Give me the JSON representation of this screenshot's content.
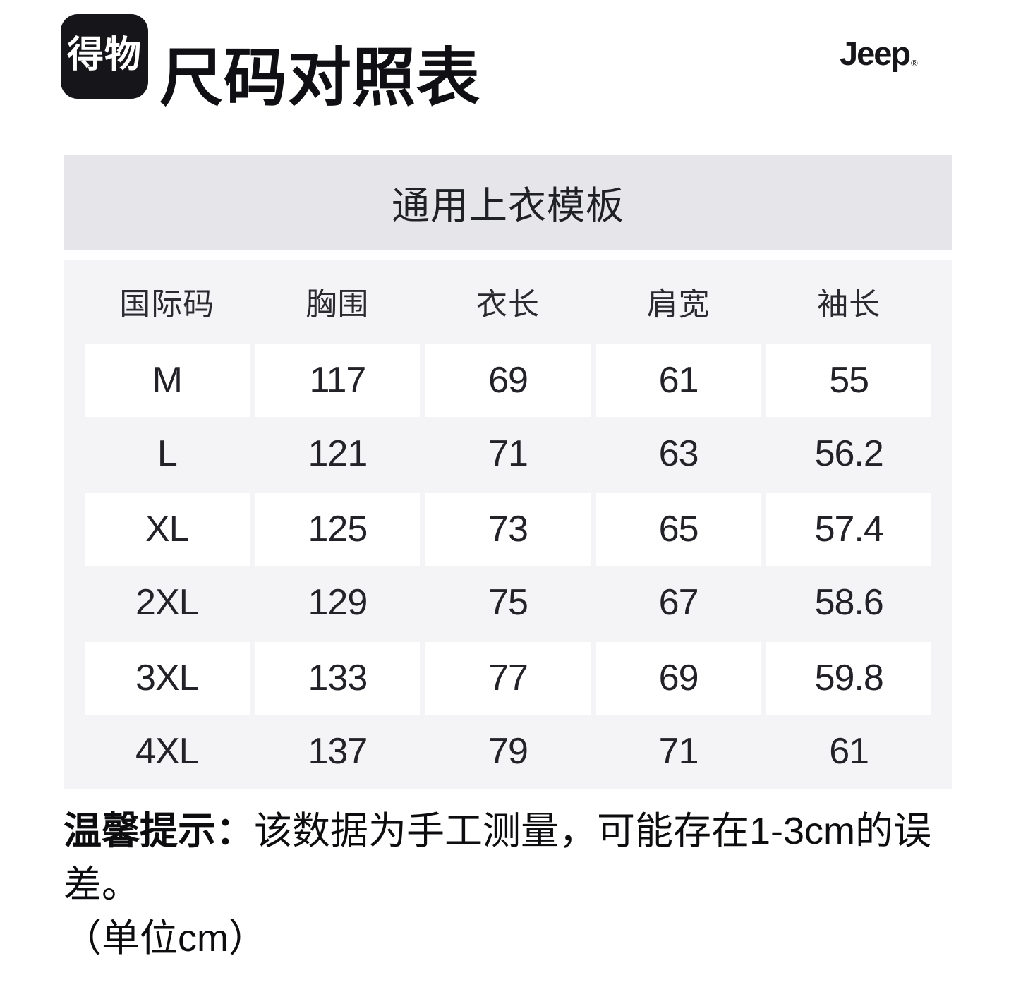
{
  "header": {
    "app_logo_text": "得物",
    "page_title": "尺码对照表",
    "brand_logo_text": "Jeep",
    "brand_logo_reg": "®"
  },
  "size_chart": {
    "template_name": "通用上衣模板",
    "columns": [
      "国际码",
      "胸围",
      "衣长",
      "肩宽",
      "袖长"
    ],
    "rows": [
      {
        "size": "M",
        "values": [
          "117",
          "69",
          "61",
          "55"
        ]
      },
      {
        "size": "L",
        "values": [
          "121",
          "71",
          "63",
          "56.2"
        ]
      },
      {
        "size": "XL",
        "values": [
          "125",
          "73",
          "65",
          "57.4"
        ]
      },
      {
        "size": "2XL",
        "values": [
          "129",
          "75",
          "67",
          "58.6"
        ]
      },
      {
        "size": "3XL",
        "values": [
          "133",
          "77",
          "69",
          "59.8"
        ]
      },
      {
        "size": "4XL",
        "values": [
          "137",
          "79",
          "71",
          "61"
        ]
      }
    ]
  },
  "footer": {
    "notice_label": "温馨提示：",
    "notice_text": "该数据为手工测量，可能存在1-3cm的误差。",
    "unit_text": "（单位cm）"
  },
  "colors": {
    "template_bar_bg": "#e6e5ea",
    "table_bg": "#f4f4f7",
    "cell_bg": "#ffffff",
    "logo_bg": "#15151a",
    "text_primary": "#111116"
  },
  "chart_data": {
    "type": "table",
    "title": "通用上衣模板",
    "columns": [
      "国际码",
      "胸围",
      "衣长",
      "肩宽",
      "袖长"
    ],
    "rows": [
      [
        "M",
        "117",
        "69",
        "61",
        "55"
      ],
      [
        "L",
        "121",
        "71",
        "63",
        "56.2"
      ],
      [
        "XL",
        "125",
        "73",
        "65",
        "57.4"
      ],
      [
        "2XL",
        "129",
        "75",
        "67",
        "58.6"
      ],
      [
        "3XL",
        "133",
        "77",
        "69",
        "59.8"
      ],
      [
        "4XL",
        "137",
        "79",
        "71",
        "61"
      ]
    ],
    "unit": "cm"
  }
}
